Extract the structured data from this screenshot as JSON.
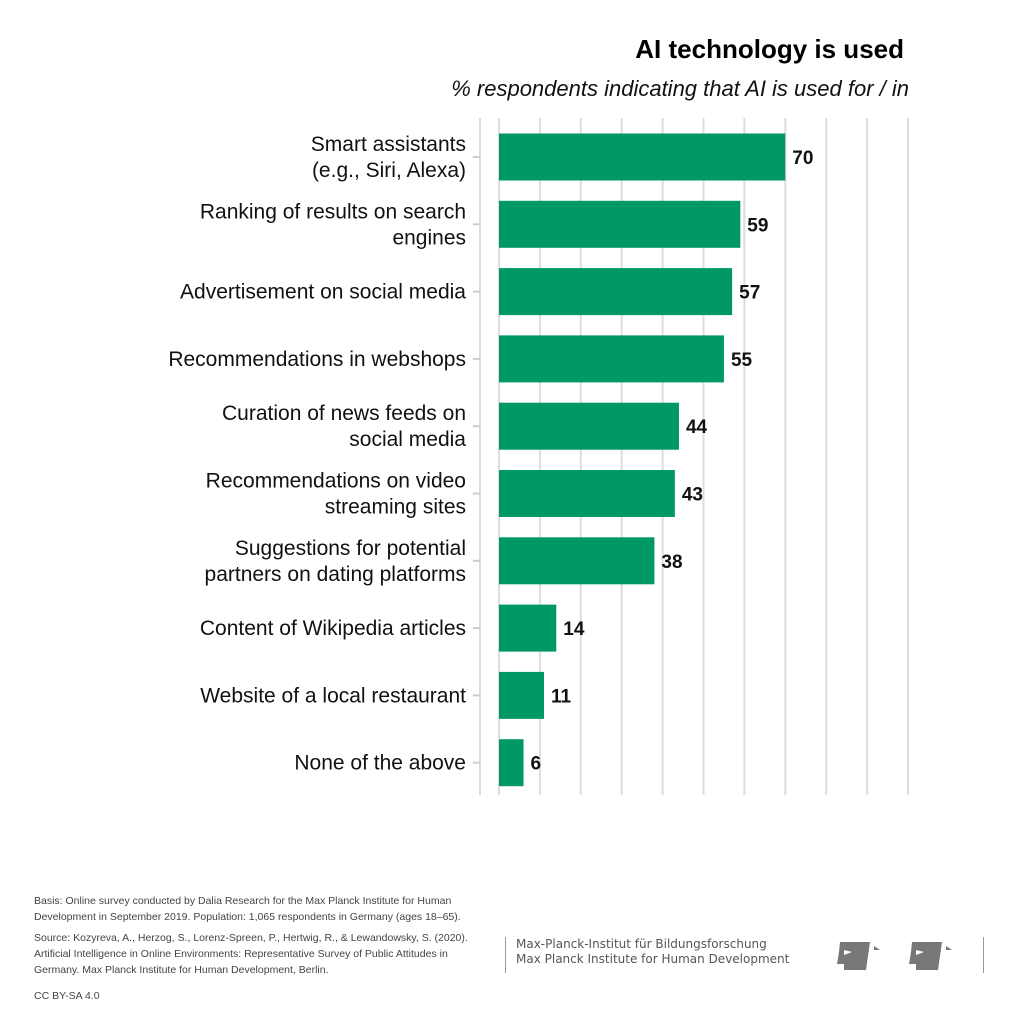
{
  "chart_data": {
    "type": "bar",
    "orientation": "horizontal",
    "title": "AI technology is used",
    "subtitle": "% respondents indicating that AI is used for / in",
    "categories": [
      [
        "Smart assistants",
        "(e.g., Siri, Alexa)"
      ],
      [
        "Ranking of results on search",
        "engines"
      ],
      [
        "Advertisement on social media"
      ],
      [
        "Recommendations in webshops"
      ],
      [
        "Curation of news feeds on",
        "social media"
      ],
      [
        "Recommendations on video",
        "streaming sites"
      ],
      [
        "Suggestions for potential",
        "partners on dating platforms"
      ],
      [
        "Content of Wikipedia articles"
      ],
      [
        "Website of a local restaurant"
      ],
      [
        "None of the above"
      ]
    ],
    "values": [
      70,
      59,
      57,
      55,
      44,
      43,
      38,
      14,
      11,
      6
    ],
    "xlim": [
      0,
      100
    ],
    "grid_step": 10,
    "grid": true,
    "bar_color": "#009966"
  },
  "footer": {
    "basis": "Basis: Online survey conducted by Dalia Research for the Max Planck Institute for Human Development in September 2019. Population: 1,065 respondents in Germany (ages 18–65).",
    "source": "Source: Kozyreva, A., Herzog, S., Lorenz-Spreen, P., Hertwig, R., & Lewandowsky, S. (2020). Artificial Intelligence in Online Environments: Representative Survey of Public Attitudes in Germany. Max Planck Institute for Human Development, Berlin.",
    "license": "CC BY-SA 4.0",
    "institute_de": "Max-Planck-Institut für Bildungsforschung",
    "institute_en": "Max Planck Institute for Human Development"
  }
}
